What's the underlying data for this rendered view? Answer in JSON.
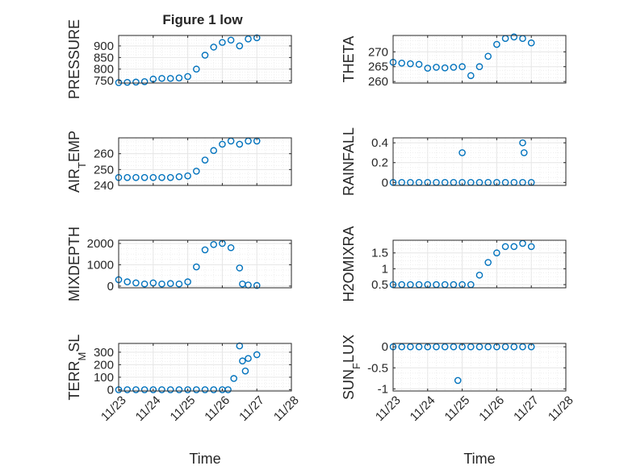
{
  "figure": {
    "title": "Figure 1 low",
    "marker_color": "#0072BD",
    "grid_color": "#e6e6e6",
    "axis_color": "#262626"
  },
  "chart_data": [
    {
      "type": "scatter",
      "ylabel": "PRESSURE",
      "xlim": [
        "11/23",
        "11/28"
      ],
      "ylim": [
        740,
        945
      ],
      "yticks": [
        750,
        800,
        850,
        900
      ],
      "ytick_labels": [
        "750",
        "800",
        "850",
        "900"
      ],
      "xticks": [
        "11/23",
        "11/24",
        "11/25",
        "11/26",
        "11/27",
        "11/28"
      ],
      "show_xtick_labels": false,
      "xlabel": "",
      "grid": true,
      "x": [
        "11/23 00:00",
        "11/23 06:00",
        "11/23 12:00",
        "11/23 18:00",
        "11/24 00:00",
        "11/24 06:00",
        "11/24 12:00",
        "11/24 18:00",
        "11/25 00:00",
        "11/25 06:00",
        "11/25 12:00",
        "11/25 18:00",
        "11/26 00:00",
        "11/26 06:00",
        "11/26 12:00",
        "11/26 18:00",
        "11/27 00:00"
      ],
      "y": [
        742,
        743,
        744,
        746,
        757,
        760,
        760,
        762,
        768,
        800,
        860,
        895,
        915,
        925,
        900,
        930,
        935
      ],
      "series": [
        {
          "values": [
            742,
            743,
            744,
            746,
            757,
            760,
            760,
            762,
            768,
            800,
            860,
            895,
            915,
            925,
            900,
            930,
            935
          ]
        }
      ]
    },
    {
      "type": "scatter",
      "ylabel": "THETA",
      "xlim": [
        "11/23",
        "11/28"
      ],
      "ylim": [
        259.5,
        275.5
      ],
      "yticks": [
        260,
        265,
        270
      ],
      "ytick_labels": [
        "260",
        "265",
        "270"
      ],
      "xticks": [
        "11/23",
        "11/24",
        "11/25",
        "11/26",
        "11/27",
        "11/28"
      ],
      "show_xtick_labels": false,
      "xlabel": "",
      "grid": true,
      "x": [
        "11/23 00:00",
        "11/23 06:00",
        "11/23 12:00",
        "11/23 18:00",
        "11/24 00:00",
        "11/24 06:00",
        "11/24 12:00",
        "11/24 18:00",
        "11/25 00:00",
        "11/25 06:00",
        "11/25 12:00",
        "11/25 18:00",
        "11/26 00:00",
        "11/26 06:00",
        "11/26 12:00",
        "11/26 18:00",
        "11/27 00:00"
      ],
      "y": [
        266.5,
        266.2,
        266.0,
        265.8,
        264.5,
        264.8,
        264.6,
        264.8,
        265.0,
        262.0,
        265.0,
        268.5,
        272.5,
        274.5,
        275.0,
        274.5,
        273.0
      ],
      "series": [
        {
          "values": [
            266.5,
            266.2,
            266.0,
            265.8,
            264.5,
            264.8,
            264.6,
            264.8,
            265.0,
            262.0,
            265.0,
            268.5,
            272.5,
            274.5,
            275.0,
            274.5,
            273.0
          ]
        }
      ]
    },
    {
      "type": "scatter",
      "ylabel": "AIR_TEMP",
      "ylabel_main": "AIR",
      "ylabel_sub": "T",
      "ylabel_rest": "EMP",
      "xlim": [
        "11/23",
        "11/28"
      ],
      "ylim": [
        240,
        270
      ],
      "yticks": [
        240,
        250,
        260
      ],
      "ytick_labels": [
        "240",
        "250",
        "260"
      ],
      "xticks": [
        "11/23",
        "11/24",
        "11/25",
        "11/26",
        "11/27",
        "11/28"
      ],
      "show_xtick_labels": false,
      "xlabel": "",
      "grid": true,
      "x": [
        "11/23 00:00",
        "11/23 06:00",
        "11/23 12:00",
        "11/23 18:00",
        "11/24 00:00",
        "11/24 06:00",
        "11/24 12:00",
        "11/24 18:00",
        "11/25 00:00",
        "11/25 06:00",
        "11/25 12:00",
        "11/25 18:00",
        "11/26 00:00",
        "11/26 06:00",
        "11/26 12:00",
        "11/26 18:00",
        "11/27 00:00"
      ],
      "y": [
        245,
        245,
        245,
        245,
        245,
        245,
        245,
        245.5,
        246,
        249,
        256,
        262,
        266,
        268,
        266,
        268,
        268
      ],
      "series": [
        {
          "values": [
            245,
            245,
            245,
            245,
            245,
            245,
            245,
            245.5,
            246,
            249,
            256,
            262,
            266,
            268,
            266,
            268,
            268
          ]
        }
      ]
    },
    {
      "type": "scatter",
      "ylabel": "RAINFALL",
      "xlim": [
        "11/23",
        "11/28"
      ],
      "ylim": [
        -0.03,
        0.45
      ],
      "yticks": [
        0,
        0.2,
        0.4
      ],
      "ytick_labels": [
        "0",
        "0.2",
        "0.4"
      ],
      "xticks": [
        "11/23",
        "11/24",
        "11/25",
        "11/26",
        "11/27",
        "11/28"
      ],
      "show_xtick_labels": false,
      "xlabel": "",
      "grid": true,
      "x": [
        "11/23 00:00",
        "11/23 06:00",
        "11/23 12:00",
        "11/23 18:00",
        "11/24 00:00",
        "11/24 06:00",
        "11/24 12:00",
        "11/24 18:00",
        "11/25 00:00",
        "11/25 06:00",
        "11/25 12:00",
        "11/25 18:00",
        "11/26 00:00",
        "11/26 06:00",
        "11/26 12:00",
        "11/26 18:00",
        "11/27 00:00",
        "11/25 00:00",
        "11/26 18:00",
        "11/26 19:00"
      ],
      "y": [
        0,
        0,
        0,
        0,
        0,
        0,
        0,
        0,
        0,
        0,
        0,
        0,
        0,
        0,
        0,
        0,
        0,
        0.3,
        0.4,
        0.3
      ],
      "series": [
        {
          "values": [
            0,
            0,
            0,
            0,
            0,
            0,
            0,
            0,
            0,
            0,
            0,
            0,
            0,
            0,
            0,
            0,
            0,
            0.3,
            0.4,
            0.3
          ]
        }
      ]
    },
    {
      "type": "scatter",
      "ylabel": "MIXDEPTH",
      "xlim": [
        "11/23",
        "11/28"
      ],
      "ylim": [
        -80,
        2150
      ],
      "yticks": [
        0,
        1000,
        2000
      ],
      "ytick_labels": [
        "0",
        "1000",
        "2000"
      ],
      "xticks": [
        "11/23",
        "11/24",
        "11/25",
        "11/26",
        "11/27",
        "11/28"
      ],
      "show_xtick_labels": false,
      "xlabel": "",
      "grid": true,
      "x": [
        "11/23 00:00",
        "11/23 06:00",
        "11/23 12:00",
        "11/23 18:00",
        "11/24 00:00",
        "11/24 06:00",
        "11/24 12:00",
        "11/24 18:00",
        "11/25 00:00",
        "11/25 06:00",
        "11/25 12:00",
        "11/25 18:00",
        "11/26 00:00",
        "11/26 06:00",
        "11/26 12:00",
        "11/26 14:00",
        "11/26 18:00",
        "11/27 00:00"
      ],
      "y": [
        300,
        200,
        150,
        100,
        150,
        100,
        120,
        100,
        200,
        900,
        1700,
        1950,
        2000,
        1800,
        850,
        100,
        50,
        30
      ],
      "series": [
        {
          "values": [
            300,
            200,
            150,
            100,
            150,
            100,
            120,
            100,
            200,
            900,
            1700,
            1950,
            2000,
            1800,
            850,
            100,
            50,
            30
          ]
        }
      ]
    },
    {
      "type": "scatter",
      "ylabel": "H2OMIXRA",
      "xlim": [
        "11/23",
        "11/28"
      ],
      "ylim": [
        0.4,
        1.9
      ],
      "yticks": [
        0.5,
        1,
        1.5
      ],
      "ytick_labels": [
        "0.5",
        "1",
        "1.5"
      ],
      "xticks": [
        "11/23",
        "11/24",
        "11/25",
        "11/26",
        "11/27",
        "11/28"
      ],
      "show_xtick_labels": false,
      "xlabel": "",
      "grid": true,
      "x": [
        "11/23 00:00",
        "11/23 06:00",
        "11/23 12:00",
        "11/23 18:00",
        "11/24 00:00",
        "11/24 06:00",
        "11/24 12:00",
        "11/24 18:00",
        "11/25 00:00",
        "11/25 06:00",
        "11/25 12:00",
        "11/25 18:00",
        "11/26 00:00",
        "11/26 06:00",
        "11/26 12:00",
        "11/26 18:00",
        "11/27 00:00"
      ],
      "y": [
        0.5,
        0.5,
        0.5,
        0.5,
        0.5,
        0.5,
        0.5,
        0.5,
        0.5,
        0.5,
        0.8,
        1.2,
        1.5,
        1.7,
        1.7,
        1.8,
        1.7
      ],
      "series": [
        {
          "values": [
            0.5,
            0.5,
            0.5,
            0.5,
            0.5,
            0.5,
            0.5,
            0.5,
            0.5,
            0.5,
            0.8,
            1.2,
            1.5,
            1.7,
            1.7,
            1.8,
            1.7
          ]
        }
      ]
    },
    {
      "type": "scatter",
      "ylabel": "TERR_MSL",
      "ylabel_main": "TERR",
      "ylabel_sub": "M",
      "ylabel_rest": "SL",
      "xlim": [
        "11/23",
        "11/28"
      ],
      "ylim": [
        -10,
        370
      ],
      "yticks": [
        0,
        100,
        200,
        300
      ],
      "ytick_labels": [
        "0",
        "100",
        "200",
        "300"
      ],
      "xticks": [
        "11/23",
        "11/24",
        "11/25",
        "11/26",
        "11/27",
        "11/28"
      ],
      "xtick_labels": [
        "11/23",
        "11/24",
        "11/25",
        "11/26",
        "11/27",
        "11/28"
      ],
      "show_xtick_labels": true,
      "xlabel": "Time",
      "grid": true,
      "x": [
        "11/23 00:00",
        "11/23 06:00",
        "11/23 12:00",
        "11/23 18:00",
        "11/24 00:00",
        "11/24 06:00",
        "11/24 12:00",
        "11/24 18:00",
        "11/25 00:00",
        "11/25 06:00",
        "11/25 12:00",
        "11/25 18:00",
        "11/26 00:00",
        "11/26 04:00",
        "11/26 08:00",
        "11/26 12:00",
        "11/26 14:00",
        "11/26 16:00",
        "11/26 18:00",
        "11/27 00:00"
      ],
      "y": [
        0,
        0,
        0,
        0,
        0,
        0,
        0,
        0,
        0,
        0,
        0,
        0,
        0,
        0,
        90,
        350,
        230,
        150,
        250,
        280
      ],
      "series": [
        {
          "values": [
            0,
            0,
            0,
            0,
            0,
            0,
            0,
            0,
            0,
            0,
            0,
            0,
            0,
            0,
            90,
            350,
            230,
            150,
            250,
            280
          ]
        }
      ]
    },
    {
      "type": "scatter",
      "ylabel": "SUN_FLUX",
      "ylabel_main": "SUN",
      "ylabel_sub": "F",
      "ylabel_rest": "LUX",
      "xlim": [
        "11/23",
        "11/28"
      ],
      "ylim": [
        -1.05,
        0.08
      ],
      "yticks": [
        -1,
        -0.5,
        0
      ],
      "ytick_labels": [
        "-1",
        "-0.5",
        "0"
      ],
      "xticks": [
        "11/23",
        "11/24",
        "11/25",
        "11/26",
        "11/27",
        "11/28"
      ],
      "xtick_labels": [
        "11/23",
        "11/24",
        "11/25",
        "11/26",
        "11/27",
        "11/28"
      ],
      "show_xtick_labels": true,
      "xlabel": "Time",
      "grid": true,
      "x": [
        "11/23 00:00",
        "11/23 06:00",
        "11/23 12:00",
        "11/23 18:00",
        "11/24 00:00",
        "11/24 06:00",
        "11/24 12:00",
        "11/24 18:00",
        "11/25 00:00",
        "11/25 06:00",
        "11/25 12:00",
        "11/25 18:00",
        "11/26 00:00",
        "11/26 06:00",
        "11/26 12:00",
        "11/26 18:00",
        "11/27 00:00",
        "11/24 21:00"
      ],
      "y": [
        0,
        0,
        0,
        0,
        0,
        0,
        0,
        0,
        0,
        0,
        0,
        0,
        0,
        0,
        0,
        0,
        0,
        -0.8
      ],
      "series": [
        {
          "values": [
            0,
            0,
            0,
            0,
            0,
            0,
            0,
            0,
            0,
            0,
            0,
            0,
            0,
            0,
            0,
            0,
            0,
            -0.8
          ]
        }
      ]
    }
  ]
}
